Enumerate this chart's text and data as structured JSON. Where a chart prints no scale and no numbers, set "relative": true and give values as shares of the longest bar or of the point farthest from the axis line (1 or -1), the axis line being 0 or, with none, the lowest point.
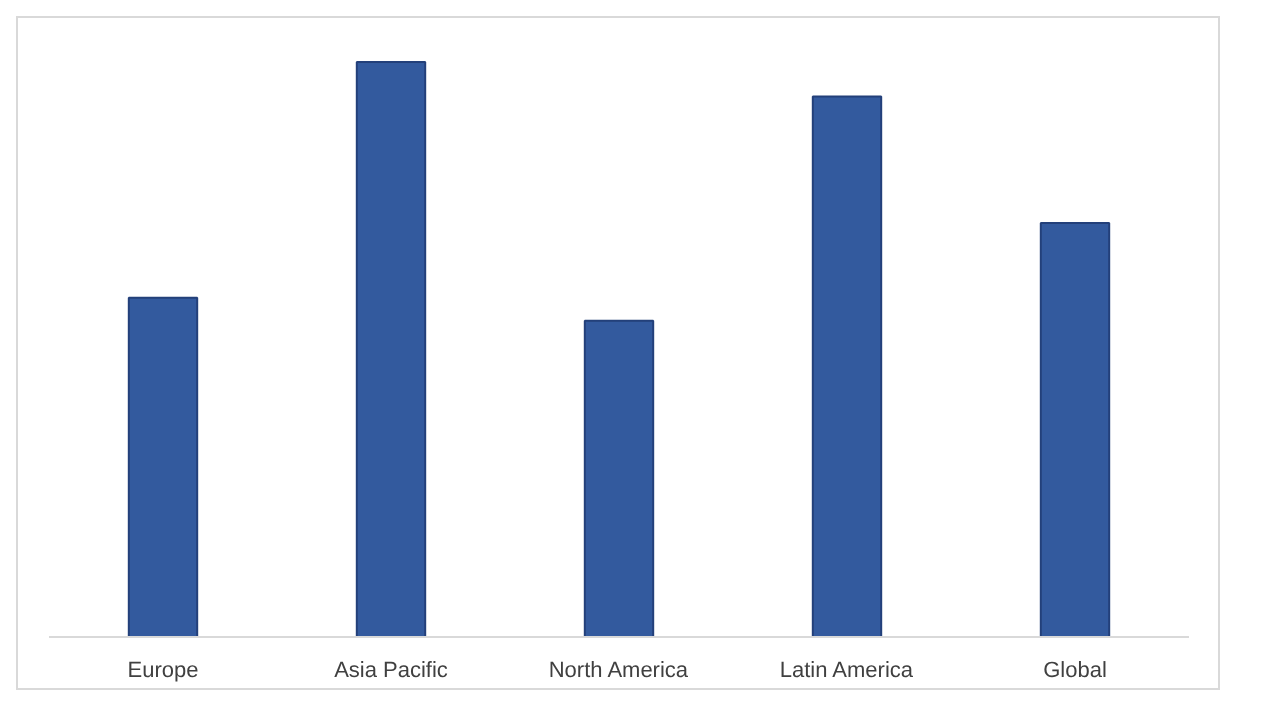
{
  "chart_data": {
    "type": "bar",
    "relative": true,
    "categories": [
      "Europe",
      "Asia Pacific",
      "North America",
      "Latin America",
      "Global"
    ],
    "values": [
      0.59,
      1,
      0.55,
      0.94,
      0.72
    ],
    "color": "#335a9e",
    "grid": false
  }
}
